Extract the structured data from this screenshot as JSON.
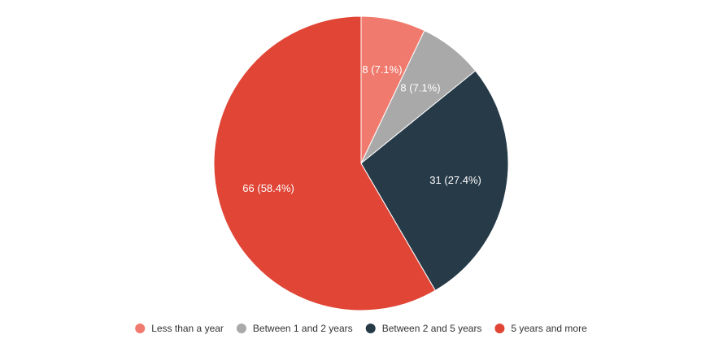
{
  "chart_data": {
    "type": "pie",
    "title": "",
    "legend_position": "bottom",
    "start_angle_deg": 0,
    "direction": "clockwise",
    "slices": [
      {
        "label": "Less than a year",
        "value": 8,
        "percent": 7.1,
        "display": "8 (7.1%)",
        "color": "#f07a6e"
      },
      {
        "label": "Between 1 and 2 years",
        "value": 8,
        "percent": 7.1,
        "display": "8 (7.1%)",
        "color": "#a9a9a9"
      },
      {
        "label": "Between 2 and 5 years",
        "value": 31,
        "percent": 27.4,
        "display": "31 (27.4%)",
        "color": "#273a48"
      },
      {
        "label": "5 years and more",
        "value": 66,
        "percent": 58.4,
        "display": "66 (58.4%)",
        "color": "#e04536"
      }
    ]
  }
}
